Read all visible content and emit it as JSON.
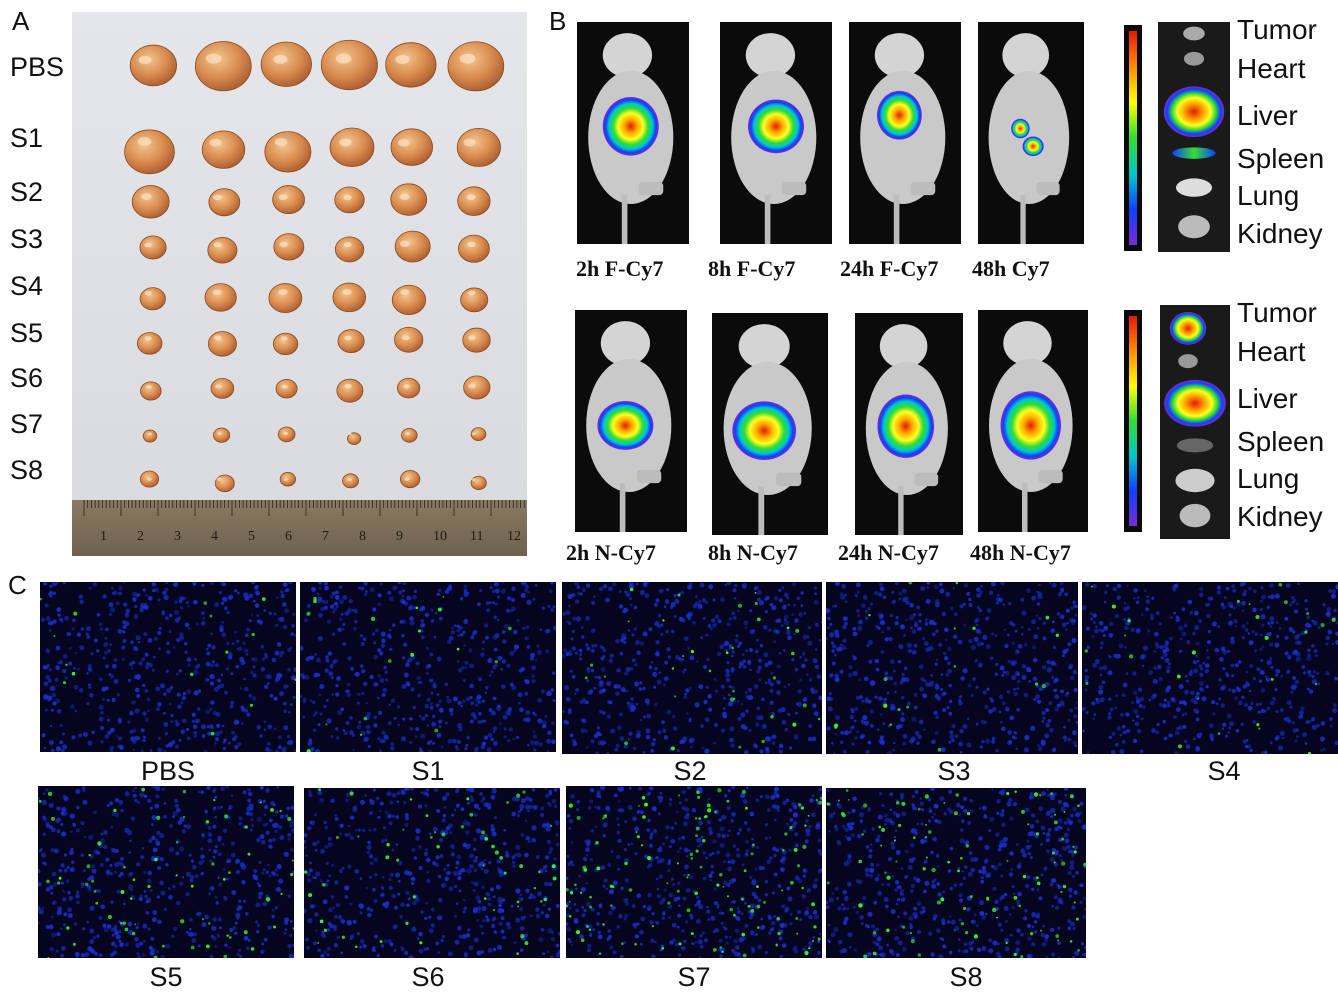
{
  "panels": {
    "a": "A",
    "b": "B",
    "c": "C"
  },
  "panelA": {
    "rows": [
      "PBS",
      "S1",
      "S2",
      "S3",
      "S4",
      "S5",
      "S6",
      "S7",
      "S8"
    ],
    "tumor_color": "#d98c4e",
    "ruler_numbers": [
      "1",
      "2",
      "3",
      "4",
      "5",
      "6",
      "7",
      "8",
      "9",
      "10",
      "11",
      "12"
    ]
  },
  "panelB": {
    "top": {
      "captions": [
        "2h F-Cy7",
        "8h F-Cy7",
        "24h F-Cy7",
        "48h Cy7"
      ],
      "organs": [
        "Tumor",
        "Heart",
        "Liver",
        "Spleen",
        "Lung",
        "Kidney"
      ]
    },
    "bottom": {
      "captions": [
        "2h N-Cy7",
        "8h N-Cy7",
        "24h N-Cy7",
        "48h N-Cy7"
      ],
      "organs": [
        "Tumor",
        "Heart",
        "Liver",
        "Spleen",
        "Lung",
        "Kidney"
      ]
    }
  },
  "panelC": {
    "row1": [
      "PBS",
      "S1",
      "S2",
      "S3",
      "S4"
    ],
    "row2": [
      "S5",
      "S6",
      "S7",
      "S8"
    ],
    "nucleus_color": "#1a2fd0",
    "signal_color": "#33ff33"
  }
}
